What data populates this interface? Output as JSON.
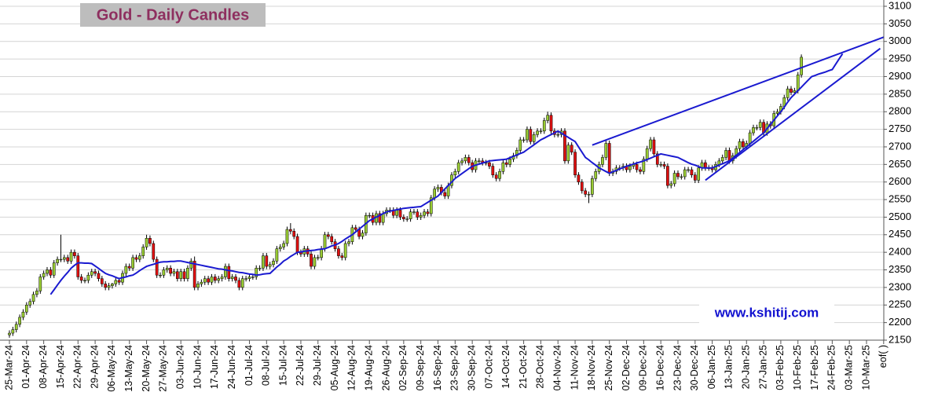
{
  "chart_data": {
    "type": "candlestick",
    "title": "Gold - Daily Candles",
    "watermark": "www.kshitij.com",
    "ylim": [
      2150,
      3100
    ],
    "yticks": [
      2150,
      2200,
      2250,
      2300,
      2350,
      2400,
      2450,
      2500,
      2550,
      2600,
      2650,
      2700,
      2750,
      2800,
      2850,
      2900,
      2950,
      3000,
      3050,
      3100
    ],
    "categories": [
      "25-Mar-24",
      "01-Apr-24",
      "08-Apr-24",
      "15-Apr-24",
      "22-Apr-24",
      "29-Apr-24",
      "06-May-24",
      "13-May-24",
      "20-May-24",
      "27-May-24",
      "03-Jun-24",
      "10-Jun-24",
      "17-Jun-24",
      "24-Jun-24",
      "01-Jul-24",
      "08-Jul-24",
      "15-Jul-24",
      "22-Jul-24",
      "29-Jul-24",
      "05-Aug-24",
      "12-Aug-24",
      "19-Aug-24",
      "26-Aug-24",
      "02-Sep-24",
      "09-Sep-24",
      "16-Sep-24",
      "23-Sep-24",
      "30-Sep-24",
      "07-Oct-24",
      "14-Oct-24",
      "21-Oct-24",
      "28-Oct-24",
      "04-Nov-24",
      "11-Nov-24",
      "18-Nov-24",
      "25-Nov-24",
      "02-Dec-24",
      "09-Dec-24",
      "16-Dec-24",
      "23-Dec-24",
      "30-Dec-24",
      "06-Jan-25",
      "13-Jan-25",
      "20-Jan-25",
      "27-Jan-25",
      "03-Feb-25",
      "10-Feb-25",
      "17-Feb-25",
      "24-Feb-25",
      "03-Mar-25",
      "10-Mar-25",
      "eof( )"
    ],
    "up_color": "#99cc33",
    "down_color": "#e01010",
    "line_color": "#1a1ad0",
    "open": [
      2165,
      2170,
      2180,
      2195,
      2215,
      2230,
      2250,
      2260,
      2280,
      2290,
      2330,
      2340,
      2350,
      2335,
      2370,
      2380,
      2380,
      2385,
      2375,
      2400,
      2390,
      2330,
      2320,
      2320,
      2335,
      2345,
      2340,
      2325,
      2310,
      2300,
      2305,
      2310,
      2320,
      2315,
      2340,
      2360,
      2355,
      2385,
      2380,
      2390,
      2415,
      2440,
      2425,
      2380,
      2335,
      2335,
      2350,
      2355,
      2340,
      2345,
      2325,
      2345,
      2325,
      2355,
      2375,
      2300,
      2310,
      2315,
      2325,
      2315,
      2330,
      2320,
      2325,
      2330,
      2360,
      2325,
      2330,
      2320,
      2300,
      2325,
      2325,
      2330,
      2330,
      2355,
      2355,
      2390,
      2360,
      2365,
      2375,
      2410,
      2415,
      2425,
      2465,
      2460,
      2445,
      2400,
      2395,
      2410,
      2395,
      2360,
      2385,
      2385,
      2410,
      2450,
      2445,
      2430,
      2410,
      2390,
      2385,
      2425,
      2430,
      2470,
      2465,
      2445,
      2455,
      2505,
      2505,
      2485,
      2510,
      2485,
      2510,
      2520,
      2520,
      2505,
      2520,
      2500,
      2495,
      2495,
      2515,
      2515,
      2500,
      2505,
      2515,
      2510,
      2555,
      2580,
      2585,
      2570,
      2560,
      2590,
      2620,
      2630,
      2655,
      2660,
      2670,
      2655,
      2635,
      2660,
      2660,
      2655,
      2655,
      2645,
      2620,
      2610,
      2630,
      2655,
      2650,
      2665,
      2675,
      2690,
      2720,
      2720,
      2750,
      2715,
      2735,
      2745,
      2745,
      2775,
      2790,
      2745,
      2735,
      2735,
      2745,
      2660,
      2705,
      2685,
      2620,
      2600,
      2575,
      2565,
      2565,
      2610,
      2630,
      2650,
      2670,
      2710,
      2625,
      2630,
      2640,
      2640,
      2645,
      2635,
      2645,
      2650,
      2635,
      2630,
      2665,
      2695,
      2720,
      2680,
      2650,
      2650,
      2645,
      2590,
      2595,
      2625,
      2615,
      2615,
      2635,
      2635,
      2620,
      2605,
      2640,
      2655,
      2640,
      2640,
      2635,
      2650,
      2660,
      2670,
      2690,
      2660,
      2675,
      2695,
      2715,
      2700,
      2710,
      2740,
      2755,
      2755,
      2770,
      2740,
      2765,
      2760,
      2795,
      2800,
      2815,
      2840,
      2865,
      2855,
      2860,
      2905
    ],
    "high": [
      2178,
      2188,
      2203,
      2223,
      2238,
      2258,
      2268,
      2288,
      2298,
      2338,
      2348,
      2358,
      2358,
      2378,
      2388,
      2450,
      2393,
      2393,
      2408,
      2408,
      2398,
      2338,
      2328,
      2343,
      2353,
      2353,
      2348,
      2333,
      2318,
      2313,
      2313,
      2328,
      2328,
      2348,
      2368,
      2368,
      2393,
      2393,
      2398,
      2423,
      2450,
      2448,
      2433,
      2388,
      2343,
      2358,
      2363,
      2363,
      2353,
      2353,
      2353,
      2353,
      2363,
      2383,
      2388,
      2318,
      2323,
      2333,
      2333,
      2338,
      2338,
      2333,
      2338,
      2368,
      2368,
      2338,
      2338,
      2328,
      2333,
      2333,
      2338,
      2338,
      2363,
      2363,
      2398,
      2398,
      2373,
      2383,
      2418,
      2423,
      2433,
      2473,
      2483,
      2468,
      2453,
      2408,
      2418,
      2418,
      2403,
      2393,
      2393,
      2418,
      2458,
      2458,
      2453,
      2438,
      2418,
      2398,
      2433,
      2438,
      2478,
      2478,
      2473,
      2463,
      2513,
      2513,
      2513,
      2518,
      2518,
      2518,
      2528,
      2528,
      2528,
      2528,
      2528,
      2508,
      2503,
      2523,
      2523,
      2523,
      2513,
      2523,
      2523,
      2563,
      2588,
      2593,
      2593,
      2578,
      2598,
      2628,
      2638,
      2663,
      2668,
      2678,
      2678,
      2663,
      2668,
      2668,
      2668,
      2663,
      2663,
      2653,
      2628,
      2638,
      2663,
      2663,
      2673,
      2683,
      2698,
      2728,
      2728,
      2758,
      2758,
      2743,
      2753,
      2753,
      2783,
      2800,
      2798,
      2753,
      2743,
      2753,
      2753,
      2713,
      2713,
      2693,
      2628,
      2608,
      2583,
      2573,
      2618,
      2638,
      2658,
      2678,
      2718,
      2718,
      2638,
      2648,
      2648,
      2653,
      2653,
      2653,
      2658,
      2658,
      2643,
      2673,
      2703,
      2728,
      2728,
      2688,
      2658,
      2658,
      2653,
      2603,
      2633,
      2633,
      2623,
      2643,
      2643,
      2643,
      2628,
      2648,
      2663,
      2663,
      2648,
      2648,
      2658,
      2668,
      2678,
      2698,
      2698,
      2683,
      2703,
      2723,
      2723,
      2718,
      2748,
      2763,
      2763,
      2778,
      2778,
      2773,
      2773,
      2803,
      2808,
      2823,
      2848,
      2873,
      2873,
      2868,
      2913,
      2963
    ],
    "low": [
      2157,
      2162,
      2172,
      2187,
      2207,
      2222,
      2242,
      2252,
      2272,
      2282,
      2322,
      2332,
      2327,
      2327,
      2362,
      2372,
      2372,
      2367,
      2367,
      2382,
      2322,
      2312,
      2312,
      2312,
      2327,
      2332,
      2317,
      2302,
      2292,
      2292,
      2297,
      2302,
      2307,
      2307,
      2332,
      2347,
      2347,
      2372,
      2372,
      2382,
      2407,
      2417,
      2372,
      2327,
      2327,
      2327,
      2342,
      2332,
      2332,
      2317,
      2317,
      2317,
      2317,
      2347,
      2292,
      2292,
      2302,
      2307,
      2307,
      2307,
      2312,
      2312,
      2317,
      2322,
      2317,
      2317,
      2312,
      2292,
      2292,
      2317,
      2317,
      2322,
      2322,
      2347,
      2347,
      2352,
      2352,
      2357,
      2367,
      2402,
      2407,
      2417,
      2452,
      2437,
      2392,
      2387,
      2387,
      2387,
      2352,
      2352,
      2377,
      2377,
      2402,
      2437,
      2422,
      2402,
      2382,
      2377,
      2377,
      2417,
      2422,
      2457,
      2437,
      2437,
      2447,
      2497,
      2477,
      2477,
      2477,
      2477,
      2502,
      2512,
      2497,
      2497,
      2492,
      2487,
      2487,
      2487,
      2507,
      2492,
      2492,
      2497,
      2502,
      2502,
      2547,
      2572,
      2562,
      2552,
      2552,
      2582,
      2612,
      2622,
      2647,
      2652,
      2647,
      2627,
      2627,
      2652,
      2647,
      2647,
      2637,
      2612,
      2602,
      2602,
      2622,
      2642,
      2642,
      2657,
      2667,
      2682,
      2712,
      2712,
      2707,
      2707,
      2727,
      2737,
      2737,
      2767,
      2737,
      2727,
      2727,
      2727,
      2652,
      2652,
      2677,
      2612,
      2592,
      2567,
      2557,
      2540,
      2557,
      2602,
      2622,
      2642,
      2662,
      2617,
      2617,
      2622,
      2632,
      2632,
      2627,
      2627,
      2637,
      2627,
      2622,
      2622,
      2657,
      2687,
      2672,
      2642,
      2642,
      2637,
      2582,
      2582,
      2587,
      2607,
      2607,
      2607,
      2627,
      2612,
      2597,
      2597,
      2632,
      2632,
      2632,
      2627,
      2627,
      2642,
      2652,
      2662,
      2652,
      2652,
      2667,
      2687,
      2692,
      2692,
      2702,
      2732,
      2747,
      2747,
      2732,
      2732,
      2752,
      2752,
      2787,
      2792,
      2807,
      2832,
      2847,
      2847,
      2852,
      2897
    ],
    "close": [
      2170,
      2180,
      2195,
      2215,
      2230,
      2250,
      2260,
      2280,
      2290,
      2330,
      2340,
      2350,
      2335,
      2370,
      2380,
      2380,
      2385,
      2375,
      2400,
      2390,
      2330,
      2320,
      2320,
      2335,
      2345,
      2340,
      2325,
      2310,
      2300,
      2305,
      2310,
      2320,
      2315,
      2340,
      2360,
      2355,
      2385,
      2380,
      2390,
      2415,
      2440,
      2425,
      2380,
      2335,
      2335,
      2350,
      2355,
      2340,
      2345,
      2325,
      2345,
      2325,
      2355,
      2375,
      2300,
      2310,
      2315,
      2325,
      2315,
      2330,
      2320,
      2325,
      2330,
      2360,
      2325,
      2330,
      2320,
      2300,
      2325,
      2325,
      2330,
      2330,
      2355,
      2355,
      2390,
      2360,
      2365,
      2375,
      2410,
      2415,
      2425,
      2465,
      2460,
      2445,
      2400,
      2395,
      2410,
      2395,
      2360,
      2385,
      2385,
      2410,
      2450,
      2445,
      2430,
      2410,
      2390,
      2385,
      2425,
      2430,
      2470,
      2465,
      2445,
      2455,
      2505,
      2505,
      2485,
      2510,
      2485,
      2510,
      2520,
      2520,
      2505,
      2520,
      2500,
      2495,
      2495,
      2515,
      2515,
      2500,
      2505,
      2515,
      2510,
      2555,
      2580,
      2585,
      2570,
      2560,
      2590,
      2620,
      2630,
      2655,
      2660,
      2670,
      2655,
      2635,
      2660,
      2660,
      2655,
      2655,
      2645,
      2620,
      2610,
      2630,
      2655,
      2650,
      2665,
      2675,
      2690,
      2720,
      2720,
      2750,
      2715,
      2735,
      2745,
      2745,
      2775,
      2790,
      2745,
      2735,
      2735,
      2745,
      2660,
      2705,
      2685,
      2620,
      2600,
      2575,
      2565,
      2565,
      2610,
      2630,
      2650,
      2670,
      2710,
      2625,
      2630,
      2640,
      2640,
      2645,
      2635,
      2645,
      2650,
      2635,
      2630,
      2665,
      2695,
      2720,
      2680,
      2650,
      2650,
      2645,
      2590,
      2595,
      2625,
      2615,
      2615,
      2635,
      2635,
      2620,
      2605,
      2640,
      2655,
      2640,
      2640,
      2635,
      2650,
      2660,
      2670,
      2690,
      2660,
      2675,
      2695,
      2715,
      2700,
      2710,
      2740,
      2755,
      2755,
      2770,
      2740,
      2765,
      2760,
      2795,
      2800,
      2815,
      2840,
      2865,
      2855,
      2860,
      2905,
      2955
    ],
    "ma": [
      null,
      null,
      null,
      null,
      null,
      null,
      null,
      null,
      null,
      null,
      null,
      null,
      2280,
      2293,
      2307,
      2320,
      2332,
      2343,
      2355,
      2363,
      2370,
      2370,
      2369,
      2369,
      2368,
      2361,
      2354,
      2347,
      2340,
      2336,
      2333,
      2329,
      2325,
      2328,
      2330,
      2333,
      2335,
      2341,
      2348,
      2354,
      2360,
      2363,
      2366,
      2369,
      2372,
      2373,
      2373,
      2374,
      2374,
      2375,
      2375,
      2373,
      2371,
      2369,
      2367,
      2365,
      2363,
      2361,
      2359,
      2357,
      2355,
      2353,
      2352,
      2350,
      2348,
      2347,
      2345,
      2343,
      2342,
      2340,
      2338,
      2337,
      2335,
      2336,
      2338,
      2339,
      2340,
      2349,
      2358,
      2366,
      2375,
      2381,
      2388,
      2394,
      2400,
      2401,
      2403,
      2404,
      2405,
      2406,
      2408,
      2409,
      2410,
      2414,
      2418,
      2421,
      2425,
      2431,
      2438,
      2444,
      2450,
      2458,
      2466,
      2474,
      2482,
      2490,
      2495,
      2500,
      2505,
      2510,
      2515,
      2517,
      2519,
      2521,
      2523,
      2525,
      2526,
      2527,
      2528,
      2529,
      2530,
      2536,
      2542,
      2548,
      2554,
      2560,
      2570,
      2580,
      2590,
      2600,
      2610,
      2617,
      2624,
      2631,
      2638,
      2645,
      2648,
      2651,
      2654,
      2657,
      2660,
      2661,
      2662,
      2663,
      2664,
      2665,
      2669,
      2673,
      2677,
      2681,
      2685,
      2692,
      2699,
      2706,
      2713,
      2720,
      2725,
      2730,
      2735,
      2740,
      2745,
      2739,
      2733,
      2727,
      2721,
      2715,
      2700,
      2685,
      2670,
      2663,
      2655,
      2648,
      2640,
      2635,
      2630,
      2625,
      2629,
      2633,
      2637,
      2641,
      2645,
      2648,
      2651,
      2654,
      2657,
      2660,
      2664,
      2668,
      2672,
      2676,
      2680,
      2678,
      2676,
      2674,
      2672,
      2670,
      2665,
      2660,
      2655,
      2651,
      2648,
      2644,
      2640,
      2640,
      2640,
      2640,
      2644,
      2648,
      2652,
      2656,
      2660,
      2668,
      2676,
      2684,
      2692,
      2700,
      2708,
      2716,
      2724,
      2732,
      2740,
      2752,
      2764,
      2776,
      2788,
      2800,
      2813,
      2827,
      2840,
      2850,
      2860,
      2870,
      2880,
      2890,
      2900,
      2903,
      2907,
      2910,
      2913,
      2917,
      2920,
      2935,
      2950,
      2965
    ],
    "trendlines": [
      {
        "x": [
          170,
          255
        ],
        "y": [
          2705,
          3012
        ]
      },
      {
        "x": [
          203,
          254
        ],
        "y": [
          2605,
          2980
        ]
      }
    ],
    "grid": true
  }
}
